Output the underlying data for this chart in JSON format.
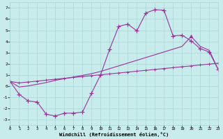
{
  "xlabel": "Windchill (Refroidissement éolien,°C)",
  "xlim": [
    0,
    23
  ],
  "ylim": [
    -3.5,
    7.5
  ],
  "yticks": [
    -3,
    -2,
    -1,
    0,
    1,
    2,
    3,
    4,
    5,
    6,
    7
  ],
  "xticks": [
    0,
    1,
    2,
    3,
    4,
    5,
    6,
    7,
    8,
    9,
    10,
    11,
    12,
    13,
    14,
    15,
    16,
    17,
    18,
    19,
    20,
    21,
    22,
    23
  ],
  "bg_color": "#c8ecec",
  "grid_color": "#aad4d4",
  "line_color": "#993399",
  "line1_x": [
    0,
    1,
    2,
    3,
    4,
    5,
    6,
    7,
    8,
    9,
    10,
    11,
    12,
    13,
    14,
    15,
    16,
    17,
    18,
    19,
    20,
    21,
    22,
    23
  ],
  "line1_y": [
    0.4,
    -0.75,
    -1.35,
    -1.45,
    -2.55,
    -2.7,
    -2.45,
    -2.45,
    -2.35,
    -0.65,
    1.0,
    3.3,
    5.35,
    5.55,
    4.95,
    6.55,
    6.85,
    6.8,
    4.5,
    4.55,
    4.05,
    3.35,
    3.05,
    1.45
  ],
  "line2_x": [
    0,
    1,
    2,
    3,
    4,
    5,
    6,
    7,
    8,
    9,
    10,
    11,
    12,
    13,
    14,
    15,
    16,
    17,
    18,
    19,
    20,
    21,
    22,
    23
  ],
  "line2_y": [
    0.4,
    0.27,
    0.35,
    0.43,
    0.52,
    0.6,
    0.68,
    0.76,
    0.84,
    0.92,
    1.0,
    1.08,
    1.16,
    1.24,
    1.32,
    1.4,
    1.48,
    1.56,
    1.64,
    1.72,
    1.8,
    1.88,
    1.96,
    2.04
  ],
  "line3_x": [
    0,
    1,
    2,
    3,
    4,
    5,
    6,
    7,
    8,
    9,
    10,
    11,
    12,
    13,
    14,
    15,
    16,
    17,
    18,
    19,
    20,
    21,
    22,
    23
  ],
  "line3_y": [
    0.4,
    -0.1,
    0.0,
    0.15,
    0.3,
    0.5,
    0.65,
    0.8,
    0.95,
    1.1,
    1.3,
    1.55,
    1.8,
    2.05,
    2.3,
    2.55,
    2.8,
    3.05,
    3.3,
    3.55,
    4.45,
    3.55,
    3.2,
    1.45
  ]
}
